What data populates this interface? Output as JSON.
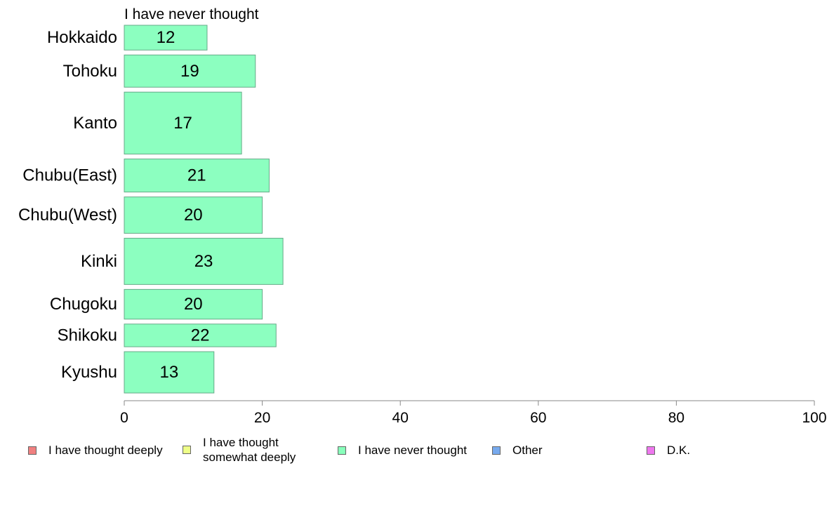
{
  "chart_data": {
    "type": "bar",
    "orientation": "horizontal",
    "title": "I have never thought",
    "categories": [
      "Hokkaido",
      "Tohoku",
      "Kanto",
      "Chubu(East)",
      "Chubu(West)",
      "Kinki",
      "Chugoku",
      "Shikoku",
      "Kyushu"
    ],
    "bar_weights": [
      0.6,
      0.78,
      1.5,
      0.8,
      0.88,
      1.12,
      0.72,
      0.55,
      1.0
    ],
    "series": [
      {
        "name": "I have never thought",
        "values": [
          12,
          19,
          17,
          21,
          20,
          23,
          20,
          22,
          13
        ]
      }
    ],
    "xlim": [
      0,
      100
    ],
    "xticks": [
      0,
      20,
      40,
      60,
      80,
      100
    ],
    "grid": false,
    "legend_position": "bottom",
    "legend": [
      {
        "label": "I have thought deeply",
        "color": "#f08080"
      },
      {
        "label": "I have thought\nsomewhat deeply",
        "color": "#eeff88"
      },
      {
        "label": "I have never thought",
        "color": "#88ffbb"
      },
      {
        "label": "Other",
        "color": "#77aaee"
      },
      {
        "label": "D.K.",
        "color": "#ee77ee"
      }
    ],
    "bar_color": "#8cffc0",
    "bar_edge_color": "#66aa88"
  }
}
